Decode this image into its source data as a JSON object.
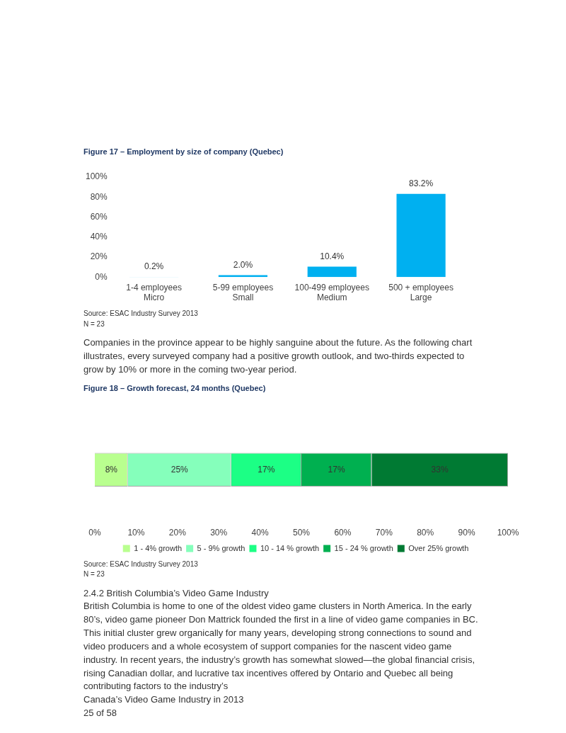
{
  "chart_data": [
    {
      "type": "bar",
      "title": "Figure 17 – Employment by size of company (Quebec)",
      "categories": [
        "1-4 employees\nMicro",
        "5-99 employees\nSmall",
        "100-499 employees\nMedium",
        "500 + employees\nLarge"
      ],
      "values": [
        0.2,
        2.0,
        10.4,
        83.2
      ],
      "value_labels": [
        "0.2%",
        "2.0%",
        "10.4%",
        "83.2%"
      ],
      "color": "#00b0f0",
      "ylim": [
        0,
        100
      ],
      "yticks": [
        {
          "value": 0,
          "label": "0%"
        },
        {
          "value": 20,
          "label": "20%"
        },
        {
          "value": 40,
          "label": "40%"
        },
        {
          "value": 60,
          "label": "60%"
        },
        {
          "value": 80,
          "label": "80%"
        },
        {
          "value": 100,
          "label": "100%"
        }
      ],
      "grid": false,
      "legend": false,
      "annotations": [
        "Source: ESAC Industry Survey 2013",
        "N = 23",
        "Companies in the province appear to be highly sanguine about the future. As the following chart illustrates, every surveyed company had a positive growth outlook, and two-thirds expected to grow by 10% or more in the coming two-year period."
      ]
    },
    {
      "type": "bar",
      "title": "Figure 18 – Growth forecast, 24 months (Quebec)",
      "orientation": "horizontal",
      "stacked": true,
      "categories": [
        null
      ],
      "series": [
        {
          "name": "1 - 4% growth",
          "color": "#b9ff8f",
          "values": [
            8
          ],
          "value_labels": [
            "8%"
          ]
        },
        {
          "name": "5 - 9% growth",
          "color": "#85ffbb",
          "values": [
            25
          ],
          "value_labels": [
            "25%"
          ]
        },
        {
          "name": "10 - 14 % growth",
          "color": "#1cff85",
          "values": [
            17
          ],
          "value_labels": [
            "17%"
          ]
        },
        {
          "name": "15 - 24 % growth",
          "color": "#00b050",
          "values": [
            17
          ],
          "value_labels": [
            "17%"
          ]
        },
        {
          "name": "Over 25% growth",
          "color": "#007a33",
          "values": [
            33
          ],
          "value_labels": [
            "33%"
          ]
        }
      ],
      "xlim": [
        0,
        100
      ],
      "xticks": [
        {
          "value": 0,
          "label": "0%"
        },
        {
          "value": 10,
          "label": "10%"
        },
        {
          "value": 20,
          "label": "20%"
        },
        {
          "value": 30,
          "label": "30%"
        },
        {
          "value": 40,
          "label": "40%"
        },
        {
          "value": 50,
          "label": "50%"
        },
        {
          "value": 60,
          "label": "60%"
        },
        {
          "value": 70,
          "label": "70%"
        },
        {
          "value": 80,
          "label": "80%"
        },
        {
          "value": 90,
          "label": "90%"
        },
        {
          "value": 100,
          "label": "100%"
        }
      ],
      "grid": false,
      "legend": "bottom",
      "annotations": [
        "Source: ESAC Industry Survey 2013",
        "N = 23",
        "2.4.2 British Columbia’s Video Game Industry",
        "British Columbia is home to one of the oldest video game clusters in North America. In the early 80’s, video game pioneer Don Mattrick founded the first in a line of video game companies in BC. This initial cluster grew organically for many years, developing strong connections to sound and video producers and a whole ecosystem of support companies for the nascent video game industry. In recent years, the industry’s growth has somewhat slowed—the global financial crisis, rising Canadian dollar, and lucrative tax incentives offered by Ontario and Quebec all being contributing factors to the industry’s",
        "Canada’s Video Game Industry in 2013",
        "25 of 58"
      ]
    }
  ]
}
